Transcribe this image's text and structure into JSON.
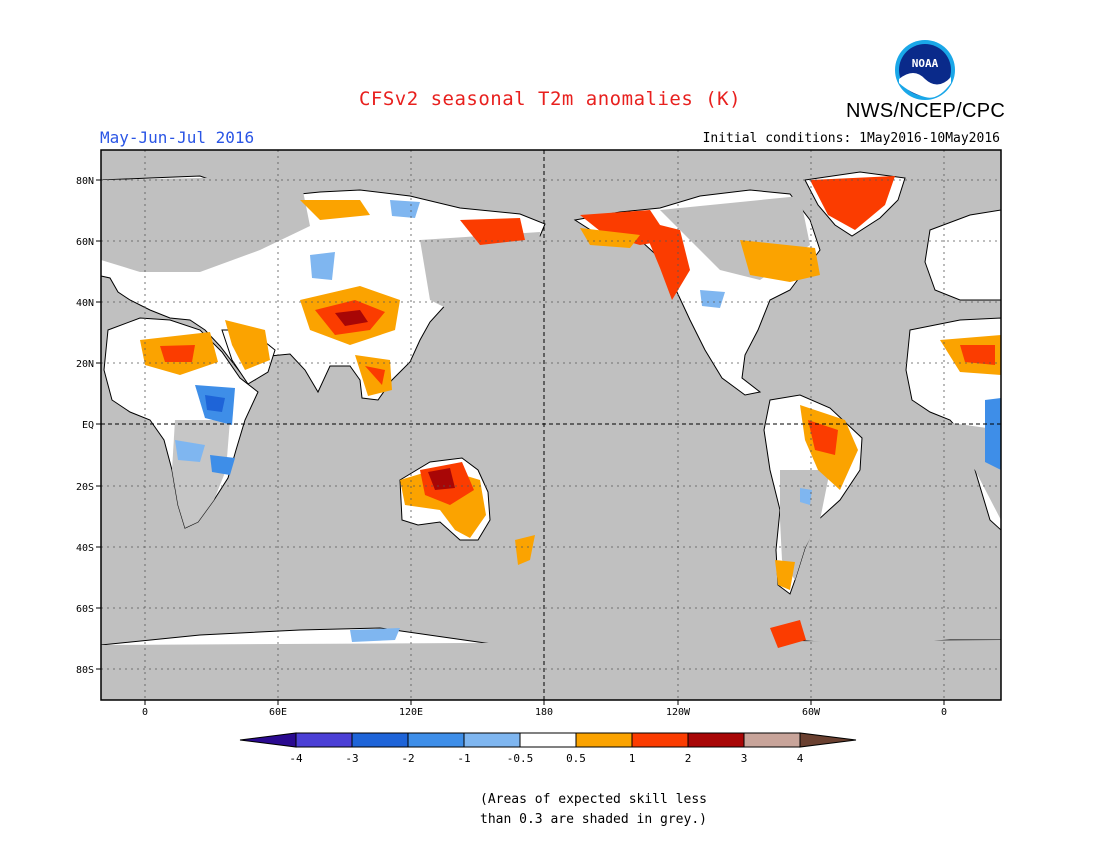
{
  "header": {
    "title": "CFSv2 seasonal T2m anomalies (K)",
    "period": "May-Jun-Jul 2016",
    "initial_conditions": "Initial conditions: 1May2016-10May2016",
    "agency": "NWS/NCEP/CPC",
    "logo_text": "NOAA"
  },
  "map": {
    "lat_labels": [
      "80N",
      "60N",
      "40N",
      "20N",
      "EQ",
      "20S",
      "40S",
      "60S",
      "80S"
    ],
    "lon_labels": [
      "0",
      "60E",
      "120E",
      "180",
      "120W",
      "60W",
      "0"
    ],
    "background_color": "#c0c0c0",
    "land_color": "#ffffff",
    "gridline_style": "dotted",
    "reference_lines": [
      "EQ",
      "180"
    ]
  },
  "colorbar": {
    "labels": [
      "-4",
      "-3",
      "-2",
      "-1",
      "-0.5",
      "0.5",
      "1",
      "2",
      "3",
      "4"
    ],
    "colors": [
      "#2a0a90",
      "#4b3fd6",
      "#1e64d8",
      "#3e8ee8",
      "#7fb6f0",
      "#ffffff",
      "#fba300",
      "#fb3c00",
      "#a80606",
      "#c8a49a",
      "#6a4030"
    ]
  },
  "footnote": {
    "line1": "(Areas of expected skill less",
    "line2": "than 0.3 are shaded in grey.)"
  }
}
